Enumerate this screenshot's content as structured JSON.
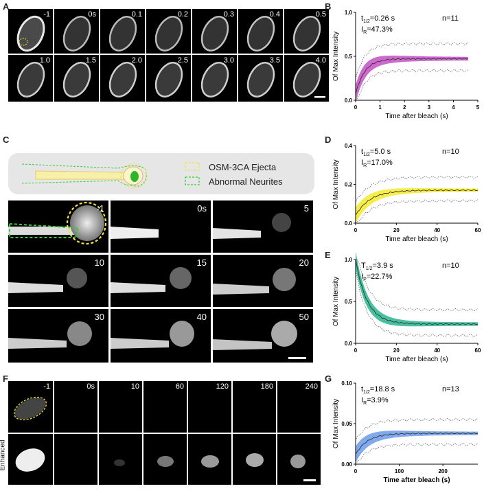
{
  "labels": {
    "A": "A",
    "B": "B",
    "C": "C",
    "D": "D",
    "E": "E",
    "F": "F",
    "G": "G"
  },
  "panelA": {
    "row1": [
      "-1",
      "0s",
      "0.1",
      "0.2",
      "0.3",
      "0.4",
      "0.5"
    ],
    "row2": [
      "1.0",
      "1.5",
      "2.0",
      "2.5",
      "3.0",
      "3.5",
      "4.0"
    ]
  },
  "panelC": {
    "legend": {
      "item1": "OSM-3CA Ejecta",
      "item2": "Abnormal Neurites"
    },
    "frames": [
      "-1",
      "0s",
      "5",
      "10",
      "15",
      "20",
      "30",
      "40",
      "50"
    ]
  },
  "panelF": {
    "frames": [
      "-1",
      "0s",
      "10",
      "60",
      "120",
      "180",
      "240"
    ],
    "row2_label": "Enhanced"
  },
  "chart_data": [
    {
      "id": "B",
      "type": "line",
      "annot1": "t",
      "annot1_sub": "1/2",
      "annot1_val": "=0.26 s",
      "annot2": "I",
      "annot2_sub": "R",
      "annot2_val": "=47.3%",
      "n": "n=11",
      "xlabel": "Time after bleach (s)",
      "ylabel": "Of Max Intensity",
      "xlim": [
        0,
        5
      ],
      "ylim": [
        0,
        1
      ],
      "xticks": [
        "0",
        "1",
        "2",
        "3",
        "4",
        "5"
      ],
      "yticks": [
        "0.0",
        "0.5",
        "1.0"
      ],
      "fill_color": "#c64fc6",
      "fit": {
        "a": 0.473,
        "k": 2.7,
        "y0": 0.07
      },
      "xmax": 4.6
    },
    {
      "id": "D",
      "type": "line",
      "annot1": "t",
      "annot1_sub": "1/2",
      "annot1_val": "=5.0 s",
      "annot2": "I",
      "annot2_sub": "R",
      "annot2_val": "=17.0%",
      "n": "n=10",
      "xlabel": "Time after bleach (s)",
      "ylabel": "Of Max Intensity",
      "xlim": [
        0,
        60
      ],
      "ylim": [
        0,
        0.4
      ],
      "xticks": [
        "0",
        "20",
        "40",
        "60"
      ],
      "yticks": [
        "0.0",
        "0.2",
        "0.4"
      ],
      "fill_color": "#f2ea2a",
      "fit": {
        "a": 0.17,
        "k": 0.139,
        "y0": 0.04
      },
      "xmax": 60
    },
    {
      "id": "E",
      "type": "line",
      "annot1": "T",
      "annot1_sub": "1/2",
      "annot1_val": "=3.9 s",
      "annot2": "I",
      "annot2_sub": "P",
      "annot2_val": "=22.7%",
      "n": "n=10",
      "xlabel": "Time after bleach (s)",
      "ylabel": "Of Max Intensity",
      "xlim": [
        0,
        60
      ],
      "ylim": [
        0,
        1
      ],
      "xticks": [
        "0",
        "20",
        "40",
        "60"
      ],
      "yticks": [
        "0.0",
        "0.5",
        "1.0"
      ],
      "fill_color": "#27b58f",
      "fit": {
        "a": -0.77,
        "k": 0.178,
        "y0": 1.0
      },
      "xmax": 60
    },
    {
      "id": "G",
      "type": "line",
      "annot1": "t",
      "annot1_sub": "1/2",
      "annot1_val": "=18.8 s",
      "annot2": "I",
      "annot2_sub": "R",
      "annot2_val": "=3.9%",
      "n": "n=13",
      "xlabel": "Time after bleach (s)",
      "ylabel": "Of Max Intensity",
      "xlim": [
        0,
        280
      ],
      "ylim": [
        0,
        0.1
      ],
      "xticks": [
        "0",
        "100",
        "200"
      ],
      "yticks": [
        "0.00",
        "0.05",
        "0.10"
      ],
      "fill_color": "#6a9be8",
      "fit": {
        "a": 0.038,
        "k": 0.037,
        "y0": 0.012
      },
      "xmax": 280
    }
  ]
}
